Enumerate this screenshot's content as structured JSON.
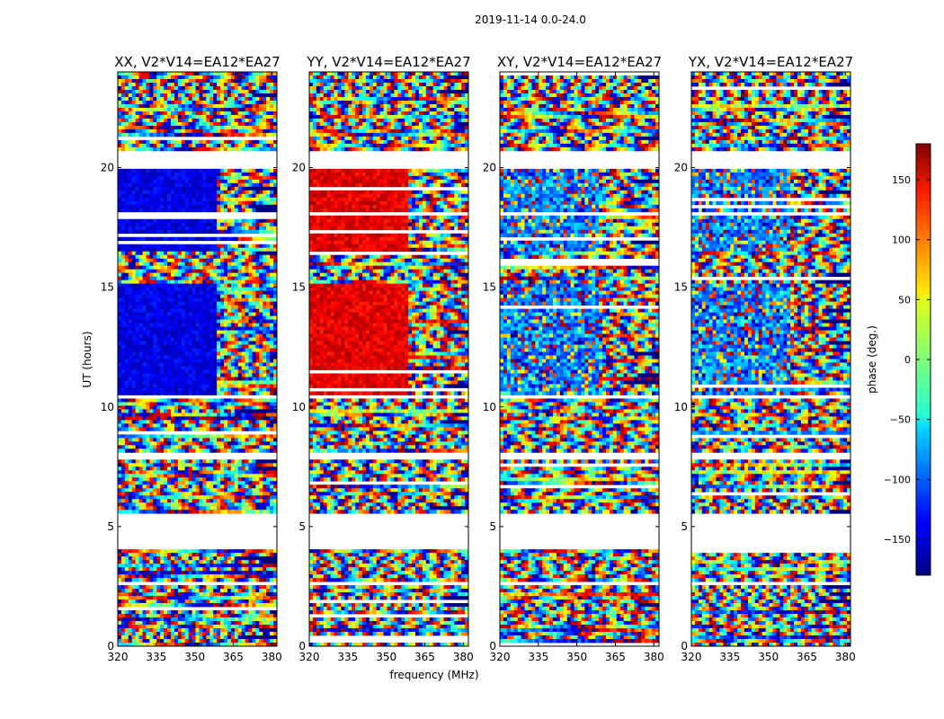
{
  "suptitle": "2019-11-14 0.0-24.0",
  "chart_data": {
    "type": "heatmap",
    "xlabel": "frequency (MHz)",
    "ylabel": "UT (hours)",
    "xlim": [
      320,
      382
    ],
    "ylim": [
      0,
      24
    ],
    "xticks": [
      320,
      335,
      350,
      365,
      380
    ],
    "yticks": [
      0,
      5,
      10,
      15,
      20
    ],
    "panels": [
      {
        "title": "XX, V2*V14=EA12*EA27",
        "mode": "parallel",
        "pol": "XX"
      },
      {
        "title": "YY, V2*V14=EA12*EA27",
        "mode": "parallel",
        "pol": "YY"
      },
      {
        "title": "XY, V2*V14=EA12*EA27",
        "mode": "cross",
        "pol": "XY"
      },
      {
        "title": "YX, V2*V14=EA12*EA27",
        "mode": "cross",
        "pol": "YX"
      }
    ],
    "gaps_hours": [
      [
        4.0,
        5.5
      ],
      [
        2.5,
        2.7
      ],
      [
        7.8,
        8.1
      ],
      [
        10.3,
        10.5
      ],
      [
        18.0,
        18.2
      ],
      [
        20.0,
        20.7
      ],
      [
        24.0,
        24.0
      ]
    ],
    "colorbar": {
      "label": "phase (deg.)",
      "range": [
        -180,
        180
      ],
      "ticks": [
        150,
        100,
        50,
        0,
        -50,
        -100,
        -150
      ],
      "tick_labels": [
        "150",
        "100",
        "50",
        "0",
        "−50",
        "−100",
        "−150"
      ],
      "colormap": "jet"
    }
  }
}
